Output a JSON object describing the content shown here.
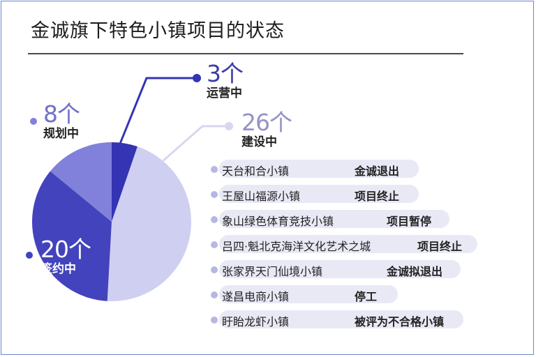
{
  "title": "金诚旗下特色小镇项目的状态",
  "colors": {
    "operating": "#3434b4",
    "planning": "#8181dc",
    "signed": "#4343bd",
    "building": "#cfcff1",
    "text_operating": "#3c3ca8",
    "text_building": "#9393c8",
    "text_planning": "#7171c8",
    "text_signed": "#ffffff"
  },
  "chart_data": {
    "type": "pie",
    "title": "金诚旗下特色小镇项目的状态",
    "unit": "个",
    "slices": [
      {
        "label": "运营中",
        "value": 3,
        "display": "3个"
      },
      {
        "label": "建设中",
        "value": 26,
        "display": "26个"
      },
      {
        "label": "签约中",
        "value": 20,
        "display": "20个"
      },
      {
        "label": "规划中",
        "value": 8,
        "display": "8个"
      }
    ]
  },
  "projects": [
    {
      "name": "天台和合小镇",
      "status": "金诚退出"
    },
    {
      "name": "王屋山福源小镇",
      "status": "项目终止"
    },
    {
      "name": "象山绿色体育竞技小镇",
      "status": "项目暂停"
    },
    {
      "name": "吕四·魁北克海洋文化艺术之城",
      "status": "项目终止"
    },
    {
      "name": "张家界天门仙境小镇",
      "status": "金诚拟退出"
    },
    {
      "name": "遂昌电商小镇",
      "status": "停工"
    },
    {
      "name": "盱眙龙虾小镇",
      "status": "被评为不合格小镇"
    }
  ]
}
